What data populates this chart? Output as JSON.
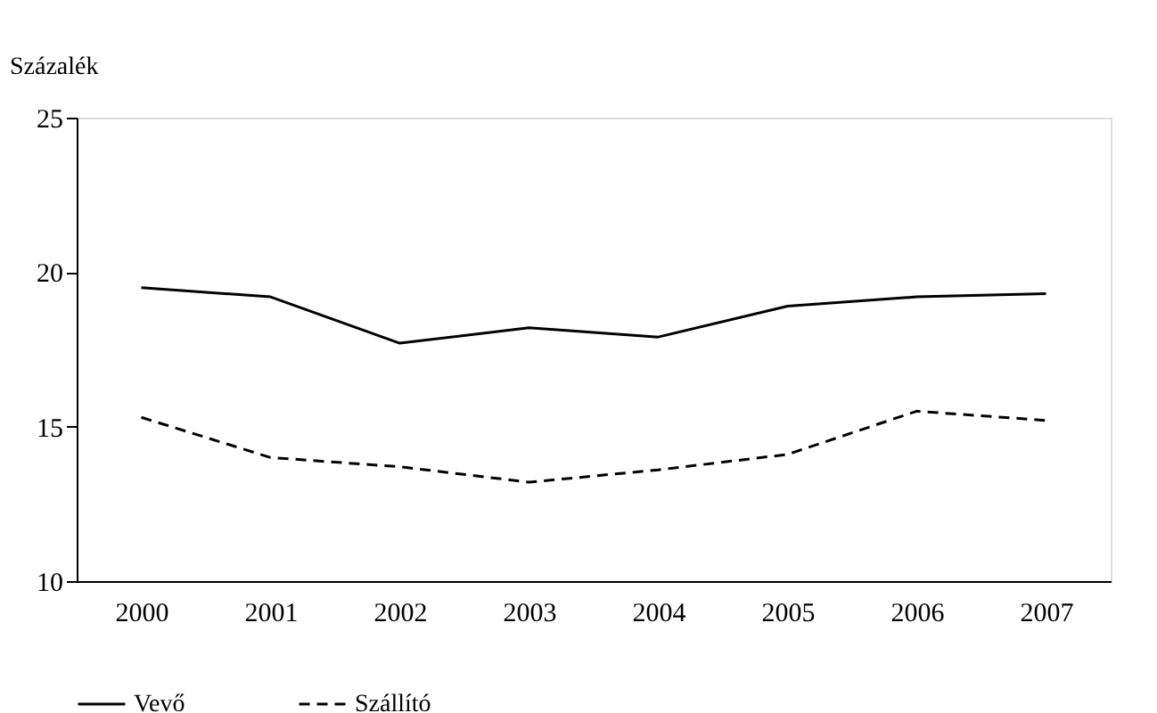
{
  "chart_data": {
    "type": "line",
    "ylabel": "Százalék",
    "categories": [
      "2000",
      "2001",
      "2002",
      "2003",
      "2004",
      "2005",
      "2006",
      "2007"
    ],
    "series": [
      {
        "name": "Vevő",
        "color": "#000000",
        "line_style": "solid",
        "values": [
          19.5,
          19.2,
          17.7,
          18.2,
          17.9,
          18.9,
          19.2,
          19.3
        ]
      },
      {
        "name": "Szállító",
        "color": "#000000",
        "line_style": "dashed",
        "values": [
          15.3,
          14.0,
          13.7,
          13.2,
          13.6,
          14.1,
          15.5,
          15.2
        ]
      }
    ],
    "ylim": [
      10,
      25
    ],
    "yticks": [
      10,
      15,
      20,
      25
    ],
    "grid": false,
    "legend": "bottom",
    "marker": "none"
  }
}
